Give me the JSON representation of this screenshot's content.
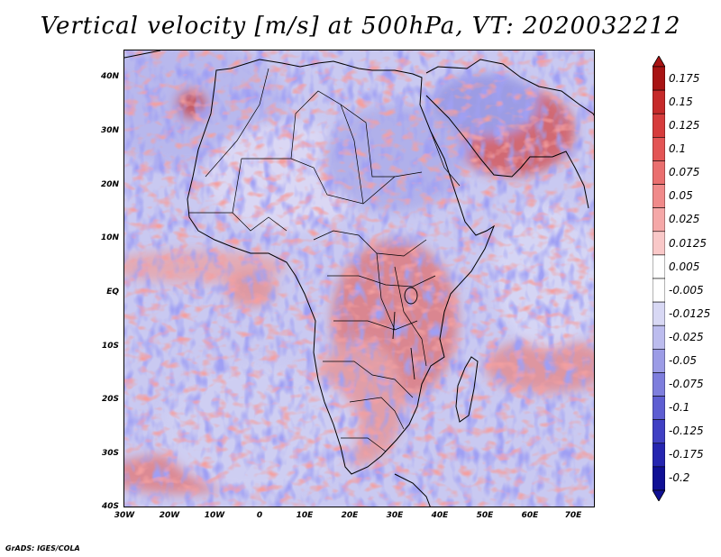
{
  "title": "Vertical velocity [m/s] at 500hPa, VT: 2020032212",
  "footer": "GrADS: IGES/COLA",
  "map": {
    "lat_labels": [
      "40N",
      "30N",
      "20N",
      "10N",
      "EQ",
      "10S",
      "20S",
      "30S",
      "40S"
    ],
    "lon_labels": [
      "30W",
      "20W",
      "10W",
      "0",
      "10E",
      "20E",
      "30E",
      "40E",
      "50E",
      "60E",
      "70E"
    ],
    "lat_range": [
      -40,
      45
    ],
    "lon_range": [
      -30,
      75
    ]
  },
  "colorbar": {
    "labels": [
      "0.175",
      "0.15",
      "0.125",
      "0.1",
      "0.075",
      "0.05",
      "0.025",
      "0.0125",
      "0.005",
      "-0.005",
      "-0.0125",
      "-0.025",
      "-0.05",
      "-0.075",
      "-0.1",
      "-0.125",
      "-0.175",
      "-0.2"
    ],
    "colors": [
      "#a81414",
      "#c62a2a",
      "#d63c3c",
      "#e35555",
      "#ea6f6f",
      "#f08a8a",
      "#f5a8a8",
      "#f9c8c8",
      "#ffffff",
      "#ffffff",
      "#d8d8f4",
      "#bcbcee",
      "#9c9ce6",
      "#7e7edd",
      "#5e5ed2",
      "#4040c4",
      "#2525b0",
      "#101095"
    ]
  }
}
